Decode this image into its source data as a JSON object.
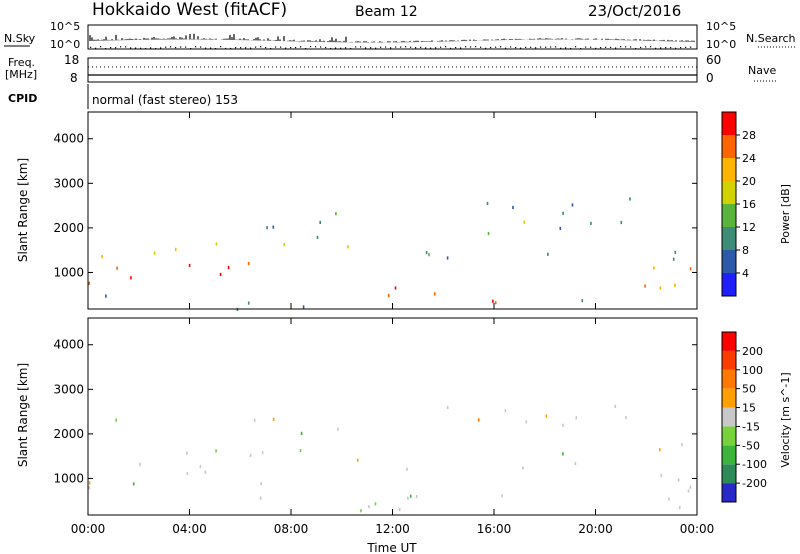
{
  "header": {
    "title": "Hokkaido West (fitACF)",
    "beam": "Beam 12",
    "date": "23/Oct/2016"
  },
  "summary_panels": {
    "sky_label": "N.Sky",
    "search_label": "N.Search",
    "freq_label_1": "Freq.",
    "freq_label_2": "[MHz]",
    "nave_label": "Nave",
    "cpid_label": "CPID",
    "cpid_text": "normal (fast stereo) 153",
    "sky_ticks": [
      "10^5",
      "10^0"
    ],
    "search_ticks": [
      "10^5",
      "10^0"
    ],
    "freq_ticks": [
      "18",
      "8"
    ],
    "nave_ticks": [
      "60",
      "0"
    ]
  },
  "chart_data": [
    {
      "type": "heatmap",
      "name": "power",
      "xlabel": "Time UT",
      "ylabel": "Slant Range [km]",
      "ylim": [
        180,
        4600
      ],
      "xlim_hours": [
        0,
        24
      ],
      "x_ticks": [
        "00:00",
        "04:00",
        "08:00",
        "12:00",
        "16:00",
        "20:00",
        "00:00"
      ],
      "y_ticks": [
        "1000",
        "2000",
        "3000",
        "4000"
      ],
      "colorbar": {
        "label": "Power [dB]",
        "ticks": [
          "4",
          "8",
          "12",
          "16",
          "20",
          "24",
          "28"
        ],
        "range": [
          0,
          30
        ],
        "colors": [
          "#1e1eff",
          "#2d5aa8",
          "#3c8c78",
          "#5ab43c",
          "#d2d200",
          "#ffb400",
          "#ff6400",
          "#ff0000"
        ]
      }
    },
    {
      "type": "heatmap",
      "name": "velocity",
      "xlabel": "Time UT",
      "ylabel": "Slant Range [km]",
      "ylim": [
        180,
        4600
      ],
      "xlim_hours": [
        0,
        24
      ],
      "x_ticks": [
        "00:00",
        "04:00",
        "08:00",
        "12:00",
        "16:00",
        "20:00",
        "00:00"
      ],
      "y_ticks": [
        "1000",
        "2000",
        "3000",
        "4000"
      ],
      "colorbar": {
        "label": "Velocity [m s^-1]",
        "ticks": [
          "200",
          "100",
          "50",
          "15",
          "-15",
          "-50",
          "-100",
          "-200"
        ],
        "colors": [
          "#2828c8",
          "#2e8b57",
          "#3cb43c",
          "#78d23c",
          "#c8c8c8",
          "#ffa000",
          "#ff7800",
          "#ff3c00",
          "#ff0000"
        ]
      }
    }
  ]
}
